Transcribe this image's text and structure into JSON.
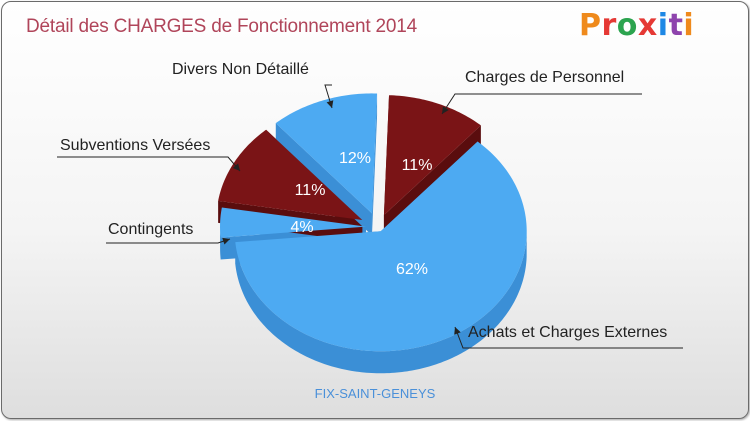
{
  "header": {
    "title": "Détail des CHARGES de Fonctionnement 2014",
    "logo_text": "Proxiti",
    "logo_letters": [
      "P",
      "r",
      "o",
      "x",
      "i",
      "t",
      "i"
    ]
  },
  "footer": {
    "location": "FIX-SAINT-GENEYS"
  },
  "colors": {
    "blue": "#4daaf2",
    "blue_side": "#3b8fd6",
    "dark_red": "#7a1416",
    "dark_red_side": "#5a0d0e",
    "label_text": "#222222",
    "percent_text": "#ffffff"
  },
  "chart_data": {
    "type": "pie",
    "title": "Détail des CHARGES de Fonctionnement 2014",
    "subtitle": "FIX-SAINT-GENEYS",
    "slices": [
      {
        "label": "Charges de Personnel",
        "value": 11,
        "percent_label": "11%",
        "color": "#7a1416",
        "side_color": "#5a0d0e"
      },
      {
        "label": "Achats et Charges Externes",
        "value": 62,
        "percent_label": "62%",
        "color": "#4daaf2",
        "side_color": "#3b8fd6"
      },
      {
        "label": "Contingents",
        "value": 4,
        "percent_label": "4%",
        "color": "#4daaf2",
        "side_color": "#3b8fd6"
      },
      {
        "label": "Subventions Versées",
        "value": 11,
        "percent_label": "11%",
        "color": "#7a1416",
        "side_color": "#5a0d0e"
      },
      {
        "label": "Divers Non Détaillé",
        "value": 12,
        "percent_label": "12%",
        "color": "#4daaf2",
        "side_color": "#3b8fd6"
      }
    ]
  }
}
